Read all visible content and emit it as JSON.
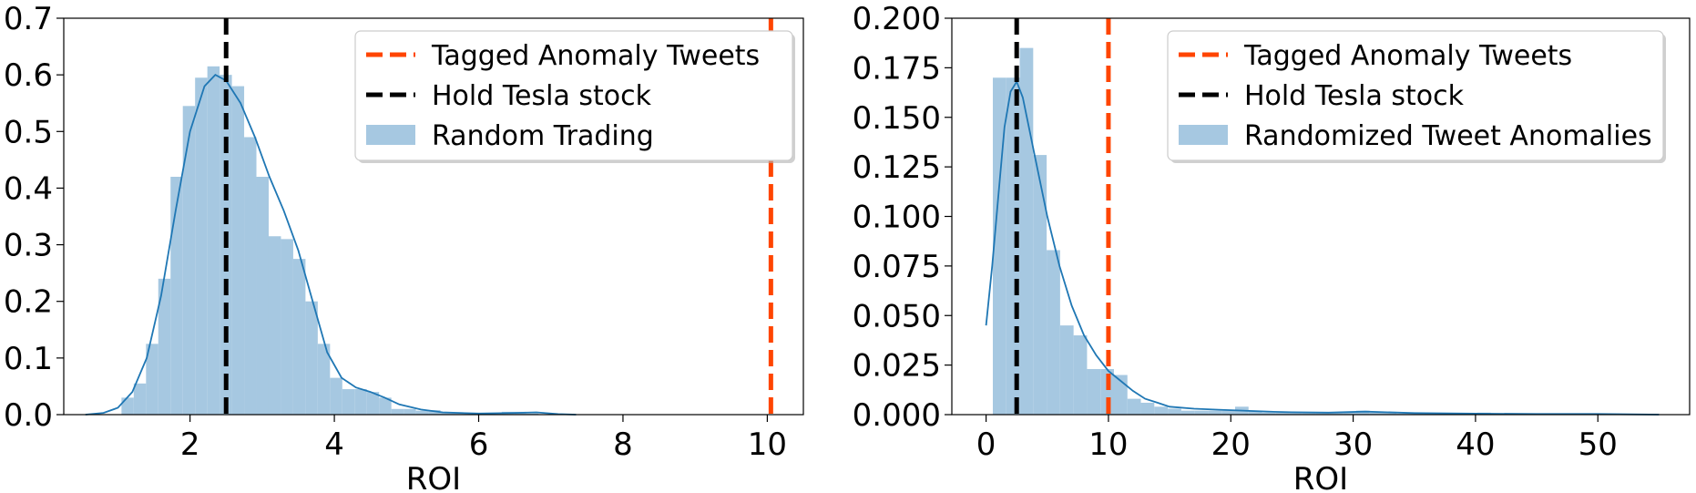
{
  "chart_data": [
    {
      "type": "histogram",
      "xlabel": "ROI",
      "ylabel": "",
      "xlim": [
        0.25,
        10.5
      ],
      "ylim": [
        0,
        0.7
      ],
      "xticks": [
        2,
        4,
        6,
        8,
        10
      ],
      "yticks": [
        0.0,
        0.1,
        0.2,
        0.3,
        0.4,
        0.5,
        0.6,
        0.7
      ],
      "ytick_decimals": 1,
      "grid": false,
      "legend_position": "top-right",
      "legend": [
        {
          "label": "Tagged Anomaly Tweets",
          "kind": "dashed-line",
          "color": "#ff4500"
        },
        {
          "label": "Hold Tesla stock",
          "kind": "dashed-line",
          "color": "#000000"
        },
        {
          "label": "Random Trading",
          "kind": "patch",
          "color": "#a6c8e1"
        }
      ],
      "histogram": {
        "bin_edges": [
          1.05,
          1.22,
          1.39,
          1.56,
          1.73,
          1.9,
          2.07,
          2.24,
          2.41,
          2.58,
          2.75,
          2.92,
          3.09,
          3.26,
          3.43,
          3.6,
          3.77,
          3.94,
          4.11,
          4.28,
          4.45,
          4.62,
          4.79,
          4.96,
          5.13,
          5.3,
          5.47,
          5.64,
          5.81,
          5.98,
          6.15,
          6.32,
          6.49,
          6.66,
          6.83,
          7.0
        ],
        "values": [
          0.03,
          0.055,
          0.125,
          0.24,
          0.42,
          0.545,
          0.595,
          0.615,
          0.6,
          0.58,
          0.49,
          0.42,
          0.315,
          0.31,
          0.275,
          0.2,
          0.125,
          0.065,
          0.045,
          0.045,
          0.04,
          0.03,
          0.01,
          0.01,
          0.007,
          0.008,
          0.003,
          0.003,
          0.002,
          0.002,
          0.002,
          0.005,
          0.005,
          0.002,
          0.0
        ],
        "color": "#a6c8e1"
      },
      "kde": {
        "color": "#1f77b4",
        "x": [
          0.55,
          0.8,
          1.0,
          1.2,
          1.4,
          1.6,
          1.8,
          2.0,
          2.2,
          2.35,
          2.5,
          2.7,
          2.9,
          3.1,
          3.3,
          3.5,
          3.7,
          3.9,
          4.1,
          4.3,
          4.5,
          4.7,
          4.9,
          5.2,
          5.5,
          6.0,
          6.5,
          6.8,
          7.1,
          7.35
        ],
        "y": [
          0.0,
          0.003,
          0.012,
          0.04,
          0.1,
          0.21,
          0.36,
          0.5,
          0.58,
          0.6,
          0.59,
          0.55,
          0.49,
          0.42,
          0.36,
          0.29,
          0.2,
          0.11,
          0.065,
          0.048,
          0.04,
          0.03,
          0.018,
          0.009,
          0.004,
          0.002,
          0.003,
          0.004,
          0.001,
          0.0
        ]
      },
      "vlines": [
        {
          "name": "Tagged Anomaly Tweets",
          "x": 10.05,
          "color": "#ff4500"
        },
        {
          "name": "Hold Tesla stock",
          "x": 2.5,
          "color": "#000000"
        }
      ]
    },
    {
      "type": "histogram",
      "xlabel": "ROI",
      "ylabel": "",
      "xlim": [
        -2.8,
        57.5
      ],
      "ylim": [
        0,
        0.2
      ],
      "xticks": [
        0,
        10,
        20,
        30,
        40,
        50
      ],
      "yticks": [
        0.0,
        0.025,
        0.05,
        0.075,
        0.1,
        0.125,
        0.15,
        0.175,
        0.2
      ],
      "ytick_decimals": 3,
      "grid": false,
      "legend_position": "top-right",
      "legend": [
        {
          "label": "Tagged Anomaly Tweets",
          "kind": "dashed-line",
          "color": "#ff4500"
        },
        {
          "label": "Hold Tesla stock",
          "kind": "dashed-line",
          "color": "#000000"
        },
        {
          "label": "Randomized Tweet Anomalies",
          "kind": "patch",
          "color": "#a6c8e1"
        }
      ],
      "histogram": {
        "bin_edges": [
          0.55,
          1.65,
          2.75,
          3.85,
          4.95,
          6.05,
          7.15,
          8.25,
          9.35,
          10.45,
          11.55,
          12.65,
          13.75,
          14.85,
          15.95,
          17.05,
          18.15,
          19.25,
          20.35,
          21.45,
          22.55,
          23.65,
          24.75,
          25.85,
          26.95,
          28.05,
          29.15,
          30.25,
          31.35,
          32.45,
          33.55,
          34.65,
          35.75,
          36.85,
          37.95,
          39.05,
          40.15,
          41.25,
          42.35,
          43.45,
          44.55,
          45.65,
          46.75,
          47.85,
          48.95,
          50.05,
          51.15,
          52.25,
          53.35,
          54.45,
          55.0
        ],
        "values": [
          0.17,
          0.17,
          0.185,
          0.131,
          0.083,
          0.045,
          0.04,
          0.023,
          0.023,
          0.02,
          0.008,
          0.006,
          0.004,
          0.003,
          0.002,
          0.002,
          0.002,
          0.002,
          0.004,
          0.002,
          0.001,
          0.001,
          0.001,
          0.001,
          0.001,
          0.001,
          0.001,
          0.002,
          0.001,
          0.001,
          0.0005,
          0.0005,
          0.0005,
          0.0005,
          0.0005,
          0.0005,
          0.001,
          0.0005,
          0.0005,
          0.0005,
          0.0005,
          0.0005,
          0.0005,
          0.0005,
          0.0005,
          0.0005,
          0.0005,
          0.0005,
          0.0005,
          0.0005
        ],
        "color": "#a6c8e1"
      },
      "kde": {
        "color": "#1f77b4",
        "x": [
          0.0,
          0.5,
          1.0,
          1.5,
          2.0,
          2.5,
          3.0,
          3.5,
          4.0,
          5.0,
          6.0,
          7.0,
          8.0,
          9.0,
          10.0,
          11.0,
          12.0,
          13.0,
          14.0,
          15.0,
          17.0,
          19.0,
          21.0,
          23.0,
          25.0,
          28.0,
          31.0,
          35.0,
          40.0,
          45.0,
          50.0,
          55.0
        ],
        "y": [
          0.045,
          0.075,
          0.11,
          0.145,
          0.163,
          0.168,
          0.16,
          0.145,
          0.13,
          0.1,
          0.075,
          0.055,
          0.04,
          0.03,
          0.022,
          0.017,
          0.012,
          0.008,
          0.006,
          0.004,
          0.003,
          0.0025,
          0.002,
          0.0015,
          0.0012,
          0.001,
          0.0015,
          0.0008,
          0.0005,
          0.0003,
          0.0003,
          0.0
        ]
      },
      "vlines": [
        {
          "name": "Tagged Anomaly Tweets",
          "x": 10.0,
          "color": "#ff4500"
        },
        {
          "name": "Hold Tesla stock",
          "x": 2.5,
          "color": "#000000"
        }
      ]
    }
  ]
}
